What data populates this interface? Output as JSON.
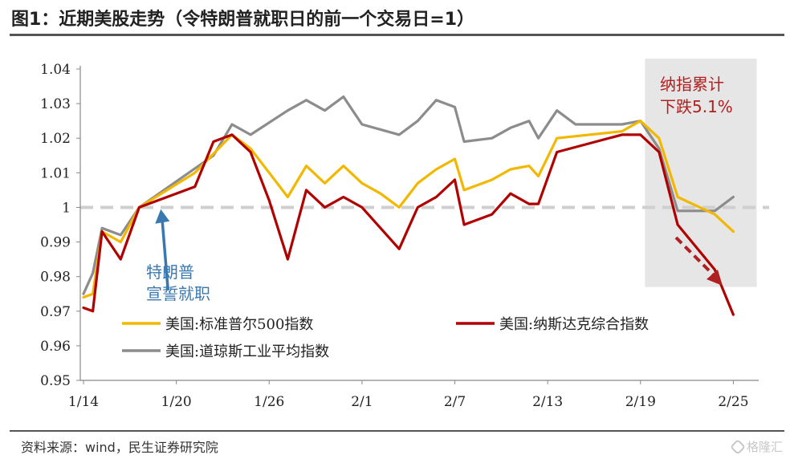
{
  "page": {
    "title": "图1：近期美股走势（令特朗普就职日的前一个交易日=1）",
    "source": "资料来源：wind，民生证券研究院",
    "watermark": "格隆汇"
  },
  "colors": {
    "sp500": "#F2B800",
    "nasdaq": "#B00000",
    "dow": "#8C8C8C",
    "baseline": "#CFCFCF",
    "shade": "#E6E6E6",
    "annotation_left": "#3A78B0",
    "annotation_right": "#B02020"
  },
  "chart_data": {
    "type": "line",
    "title": "",
    "xlabel": "",
    "ylabel": "",
    "ylim": [
      0.95,
      1.04
    ],
    "yticks": [
      "0.95",
      "0.96",
      "0.97",
      "0.98",
      "0.99",
      "1",
      "1.01",
      "1.02",
      "1.03",
      "1.04"
    ],
    "ytick_values": [
      0.95,
      0.96,
      0.97,
      0.98,
      0.99,
      1.0,
      1.01,
      1.02,
      1.03,
      1.04
    ],
    "xlim": [
      0,
      71
    ],
    "xticks": [
      {
        "label": "1/14",
        "x": 0
      },
      {
        "label": "1/20",
        "x": 10
      },
      {
        "label": "1/26",
        "x": 20
      },
      {
        "label": "2/1",
        "x": 30
      },
      {
        "label": "2/7",
        "x": 40
      },
      {
        "label": "2/13",
        "x": 50
      },
      {
        "label": "2/19",
        "x": 60
      },
      {
        "label": "2/25",
        "x": 70
      }
    ],
    "baseline": 1,
    "shade_region": {
      "x": [
        61,
        72
      ],
      "y": [
        0.977,
        1.043
      ]
    },
    "series": [
      {
        "name": "美国:标准普尔500指数",
        "key": "sp500",
        "points": [
          [
            0,
            0.974
          ],
          [
            1,
            0.975
          ],
          [
            2,
            0.993
          ],
          [
            4,
            0.99
          ],
          [
            6,
            1.0
          ],
          [
            12,
            1.01
          ],
          [
            16,
            1.021
          ],
          [
            18,
            1.017
          ],
          [
            20,
            1.01
          ],
          [
            22,
            1.003
          ],
          [
            24,
            1.012
          ],
          [
            26,
            1.007
          ],
          [
            28,
            1.012
          ],
          [
            30,
            1.007
          ],
          [
            32,
            1.004
          ],
          [
            34,
            1.0
          ],
          [
            36,
            1.007
          ],
          [
            38,
            1.011
          ],
          [
            40,
            1.014
          ],
          [
            41,
            1.005
          ],
          [
            44,
            1.008
          ],
          [
            46,
            1.011
          ],
          [
            48,
            1.012
          ],
          [
            49,
            1.009
          ],
          [
            51,
            1.02
          ],
          [
            58,
            1.022
          ],
          [
            60,
            1.025
          ],
          [
            62,
            1.02
          ],
          [
            64,
            1.003
          ],
          [
            68,
            0.998
          ],
          [
            70,
            0.993
          ]
        ]
      },
      {
        "name": "美国:纳斯达克综合指数",
        "key": "nasdaq",
        "points": [
          [
            0,
            0.971
          ],
          [
            1,
            0.97
          ],
          [
            2,
            0.993
          ],
          [
            4,
            0.985
          ],
          [
            6,
            1.0
          ],
          [
            10,
            1.004
          ],
          [
            12,
            1.006
          ],
          [
            14,
            1.019
          ],
          [
            16,
            1.021
          ],
          [
            18,
            1.016
          ],
          [
            20,
            1.002
          ],
          [
            22,
            0.985
          ],
          [
            24,
            1.005
          ],
          [
            26,
            1.0
          ],
          [
            28,
            1.003
          ],
          [
            30,
            1.0
          ],
          [
            34,
            0.988
          ],
          [
            36,
            1.0
          ],
          [
            38,
            1.003
          ],
          [
            40,
            1.008
          ],
          [
            41,
            0.995
          ],
          [
            44,
            0.998
          ],
          [
            46,
            1.004
          ],
          [
            48,
            1.001
          ],
          [
            49,
            1.001
          ],
          [
            51,
            1.016
          ],
          [
            58,
            1.021
          ],
          [
            60,
            1.021
          ],
          [
            62,
            1.016
          ],
          [
            64,
            0.995
          ],
          [
            68,
            0.982
          ],
          [
            70,
            0.969
          ]
        ]
      },
      {
        "name": "美国:道琼斯工业平均指数",
        "key": "dow",
        "points": [
          [
            0,
            0.975
          ],
          [
            1,
            0.981
          ],
          [
            2,
            0.994
          ],
          [
            4,
            0.992
          ],
          [
            6,
            1.0
          ],
          [
            14,
            1.015
          ],
          [
            16,
            1.024
          ],
          [
            18,
            1.021
          ],
          [
            22,
            1.028
          ],
          [
            24,
            1.031
          ],
          [
            26,
            1.028
          ],
          [
            28,
            1.032
          ],
          [
            30,
            1.024
          ],
          [
            34,
            1.021
          ],
          [
            36,
            1.025
          ],
          [
            38,
            1.031
          ],
          [
            40,
            1.029
          ],
          [
            41,
            1.019
          ],
          [
            44,
            1.02
          ],
          [
            46,
            1.023
          ],
          [
            48,
            1.025
          ],
          [
            49,
            1.02
          ],
          [
            51,
            1.028
          ],
          [
            53,
            1.024
          ],
          [
            58,
            1.024
          ],
          [
            60,
            1.025
          ],
          [
            62,
            1.017
          ],
          [
            64,
            0.999
          ],
          [
            68,
            0.999
          ],
          [
            70,
            1.003
          ]
        ]
      }
    ],
    "legend": {
      "placement": "bottom-center"
    },
    "annotations": [
      {
        "key": "left",
        "lines": [
          "特朗普",
          "宣誓就职"
        ]
      },
      {
        "key": "right",
        "lines": [
          "纳指累计",
          "下跌5.1%"
        ]
      }
    ]
  }
}
